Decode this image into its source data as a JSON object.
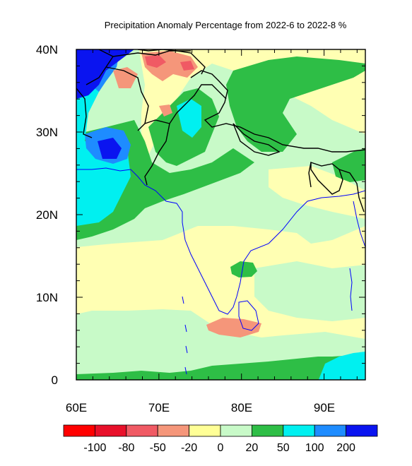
{
  "title": "Precipitation Anomaly Percentage from 2022-6 to 2022-8 %",
  "map": {
    "lon_range": [
      60,
      95
    ],
    "lat_range": [
      0,
      40
    ],
    "lon_ticks": [
      "60E",
      "70E",
      "80E",
      "90E"
    ],
    "lat_ticks": [
      "0",
      "10N",
      "20N",
      "30N",
      "40N"
    ],
    "land_color": "#ffffb3"
  },
  "legend": {
    "labels": [
      "-100",
      "-80",
      "-50",
      "-20",
      "0",
      "20",
      "50",
      "100",
      "200"
    ],
    "colors": [
      "#ff0000",
      "#e8102a",
      "#f05a64",
      "#f5967a",
      "#ffff96",
      "#c8fac8",
      "#2ebe46",
      "#00f0f0",
      "#1e8cff",
      "#0a14f0"
    ]
  },
  "colors": {
    "coast": "#0000ff",
    "border": "#000000"
  }
}
